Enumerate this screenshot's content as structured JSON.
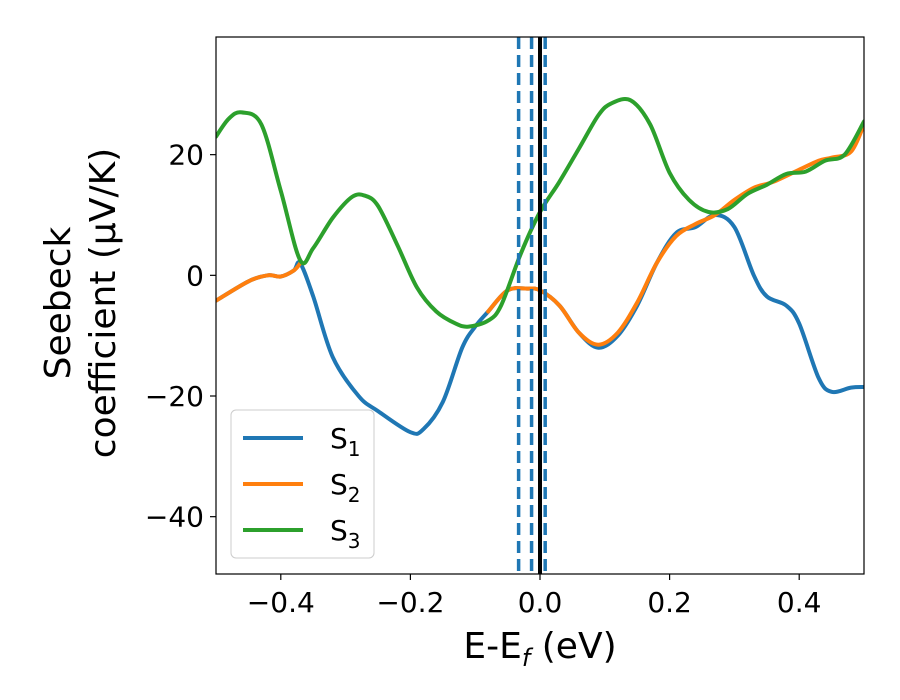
{
  "chart_data": {
    "type": "line",
    "xlabel": "E-E",
    "xlabel_sub": "f",
    "xlabel_unit": " (eV)",
    "ylabel_line1": "Seebeck",
    "ylabel_line2": "coefficient  (μV/K)",
    "xlim": [
      -0.5,
      0.5
    ],
    "ylim": [
      -49.5,
      39.5
    ],
    "xticks": [
      -0.4,
      -0.2,
      0.0,
      0.2,
      0.4
    ],
    "xtick_labels": [
      "−0.4",
      "−0.2",
      "0.0",
      "0.2",
      "0.4"
    ],
    "yticks": [
      -40,
      -20,
      0,
      20
    ],
    "ytick_labels": [
      "−40",
      "−20",
      "0",
      "20"
    ],
    "grid": false,
    "legend_position": "lower-left",
    "vlines": [
      {
        "x": -0.033,
        "style": "dashed",
        "color": "#1f77b4"
      },
      {
        "x": -0.013,
        "style": "dashed",
        "color": "#1f77b4"
      },
      {
        "x": 0.008,
        "style": "dashed",
        "color": "#1f77b4"
      },
      {
        "x": 0.0,
        "style": "solid",
        "color": "#000000"
      }
    ],
    "series": [
      {
        "name": "S",
        "sub": "1",
        "color": "#1f77b4",
        "x": [
          -0.5,
          -0.45,
          -0.42,
          -0.4,
          -0.38,
          -0.37,
          -0.35,
          -0.32,
          -0.28,
          -0.25,
          -0.2,
          -0.18,
          -0.15,
          -0.12,
          -0.1,
          -0.08,
          -0.05,
          -0.02,
          0.0,
          0.03,
          0.06,
          0.09,
          0.12,
          0.15,
          0.18,
          0.21,
          0.24,
          0.27,
          0.3,
          0.33,
          0.35,
          0.38,
          0.4,
          0.43,
          0.45,
          0.48,
          0.5
        ],
        "y": [
          -4.2,
          -1.0,
          0.0,
          -0.2,
          0.8,
          2.0,
          -3.5,
          -13.5,
          -20.0,
          -22.5,
          -26.0,
          -25.5,
          -21.0,
          -12.0,
          -8.5,
          -6.0,
          -2.5,
          -2.2,
          -2.5,
          -5.0,
          -9.5,
          -12.0,
          -10.0,
          -5.0,
          2.0,
          7.0,
          8.0,
          10.0,
          8.0,
          0.0,
          -3.5,
          -5.0,
          -8.0,
          -17.0,
          -19.3,
          -18.6,
          -18.5
        ]
      },
      {
        "name": "S",
        "sub": "2",
        "color": "#ff7f0e",
        "x": [
          -0.5,
          -0.45,
          -0.42,
          -0.4,
          -0.38,
          -0.37,
          -0.3,
          -0.2,
          -0.15,
          -0.1,
          -0.08,
          -0.05,
          -0.02,
          0.0,
          0.03,
          0.06,
          0.09,
          0.12,
          0.15,
          0.18,
          0.21,
          0.24,
          0.27,
          0.3,
          0.33,
          0.36,
          0.4,
          0.43,
          0.45,
          0.48,
          0.5
        ],
        "y": [
          -4.2,
          -1.0,
          0.0,
          -0.2,
          0.8,
          2.0,
          null,
          null,
          null,
          null,
          -6.0,
          -2.5,
          -2.2,
          -2.5,
          -5.0,
          -9.5,
          -11.5,
          -9.5,
          -4.5,
          2.0,
          6.5,
          8.5,
          10.0,
          12.5,
          14.5,
          15.5,
          17.5,
          19.0,
          19.5,
          20.5,
          25.0
        ]
      },
      {
        "name": "S",
        "sub": "3",
        "color": "#2ca02c",
        "x": [
          -0.5,
          -0.48,
          -0.46,
          -0.43,
          -0.4,
          -0.37,
          -0.35,
          -0.32,
          -0.29,
          -0.27,
          -0.25,
          -0.22,
          -0.19,
          -0.16,
          -0.13,
          -0.11,
          -0.08,
          -0.06,
          -0.03,
          0.0,
          0.03,
          0.06,
          0.09,
          0.11,
          0.14,
          0.17,
          0.2,
          0.23,
          0.26,
          0.29,
          0.32,
          0.35,
          0.38,
          0.41,
          0.44,
          0.47,
          0.5
        ],
        "y": [
          23.0,
          26.0,
          27.0,
          25.0,
          14.0,
          2.5,
          4.5,
          9.5,
          13.0,
          13.2,
          11.5,
          5.0,
          -2.0,
          -6.0,
          -8.0,
          -8.5,
          -7.5,
          -5.0,
          3.5,
          10.5,
          15.5,
          21.0,
          26.5,
          28.5,
          29.0,
          25.0,
          17.0,
          12.5,
          10.5,
          11.0,
          13.5,
          15.0,
          16.8,
          17.2,
          19.0,
          20.0,
          25.5
        ]
      }
    ]
  }
}
